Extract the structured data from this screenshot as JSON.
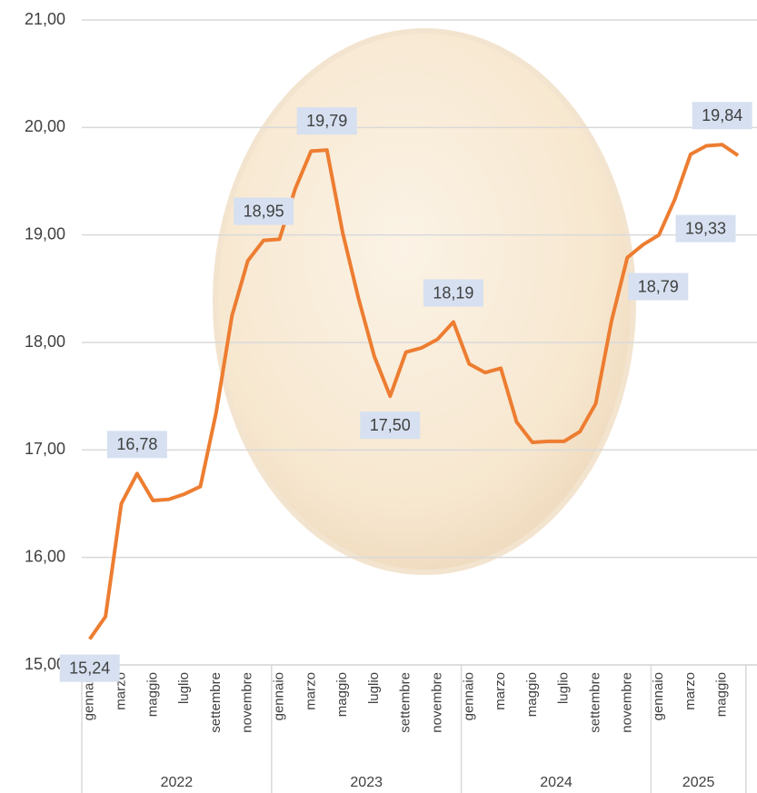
{
  "chart_data": {
    "type": "line",
    "categories": [
      "gennaio",
      null,
      "marzo",
      null,
      "maggio",
      null,
      "luglio",
      null,
      "settembre",
      null,
      "novembre",
      null,
      "gennaio",
      null,
      "marzo",
      null,
      "maggio",
      null,
      "luglio",
      null,
      "settembre",
      null,
      "novembre",
      null,
      "gennaio",
      null,
      "marzo",
      null,
      "maggio",
      null,
      "luglio",
      null,
      "settembre",
      null,
      "novembre",
      null,
      "gennaio",
      null,
      "marzo",
      null,
      "maggio",
      null
    ],
    "groups": [
      "2022",
      "2023",
      "2024",
      "2025"
    ],
    "series": [
      {
        "name": null,
        "color": "#ed7d31",
        "values": [
          15.24,
          15.45,
          16.5,
          16.78,
          16.53,
          16.54,
          16.59,
          16.66,
          17.35,
          18.25,
          18.76,
          18.95,
          18.96,
          19.43,
          19.78,
          19.79,
          19.02,
          18.41,
          17.87,
          17.5,
          17.91,
          17.95,
          18.03,
          18.19,
          17.8,
          17.72,
          17.76,
          17.26,
          17.07,
          17.08,
          17.08,
          17.17,
          17.43,
          18.2,
          18.79,
          18.91,
          19.0,
          19.33,
          19.75,
          19.83,
          19.84,
          19.74
        ],
        "value_labels": [
          "15,24",
          null,
          null,
          "16,78",
          null,
          null,
          null,
          null,
          null,
          null,
          null,
          "18,95",
          null,
          null,
          null,
          "19,79",
          null,
          null,
          null,
          "17,50",
          null,
          null,
          null,
          "18,19",
          null,
          null,
          null,
          null,
          null,
          null,
          null,
          null,
          null,
          null,
          "18,79",
          null,
          null,
          "19,33",
          null,
          null,
          "19,84",
          null
        ]
      }
    ],
    "ylim": [
      15,
      21
    ],
    "yticks": [
      {
        "value": 15,
        "label": "15,00"
      },
      {
        "value": 16,
        "label": "16,00"
      },
      {
        "value": 17,
        "label": "17,00"
      },
      {
        "value": 18,
        "label": "18,00"
      },
      {
        "value": 19,
        "label": "19,00"
      },
      {
        "value": 20,
        "label": "20,00"
      },
      {
        "value": 21,
        "label": "21,00"
      }
    ],
    "grid": true
  }
}
